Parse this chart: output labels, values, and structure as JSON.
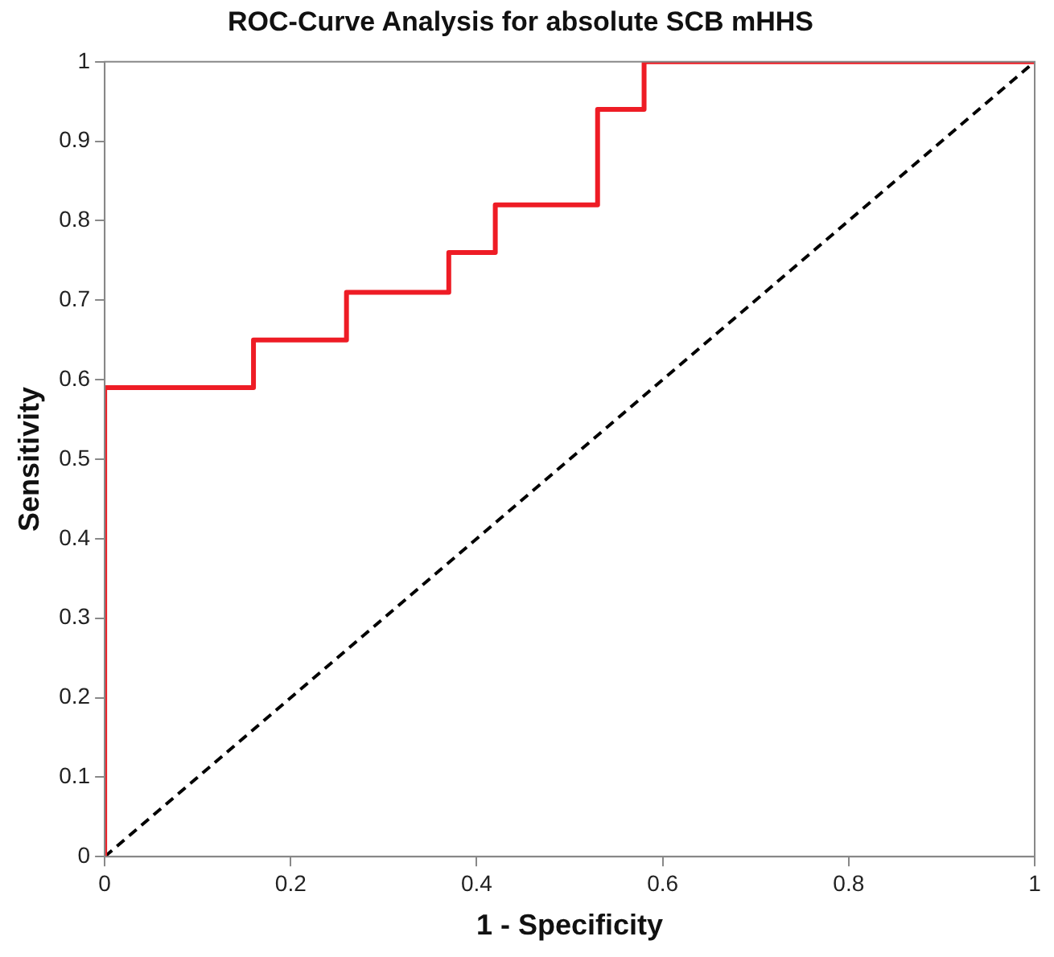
{
  "chart_data": {
    "type": "step",
    "title": "ROC-Curve Analysis for absolute SCB mHHS",
    "xlabel": "1 - Specificity",
    "ylabel": "Sensitivity",
    "xlim": [
      0,
      1
    ],
    "ylim": [
      0,
      1
    ],
    "xticks": [
      0,
      0.2,
      0.4,
      0.6,
      0.8,
      1
    ],
    "yticks": [
      0,
      0.1,
      0.2,
      0.3,
      0.4,
      0.5,
      0.6,
      0.7,
      0.8,
      0.9,
      1
    ],
    "grid": false,
    "legend": false,
    "marker": "none",
    "series": [
      {
        "color": "#ee1c25",
        "line_style": "solid",
        "x": [
          0,
          0,
          0.16,
          0.26,
          0.37,
          0.42,
          0.53,
          0.58,
          1
        ],
        "values": [
          0,
          0.59,
          0.65,
          0.71,
          0.76,
          0.82,
          0.94,
          1,
          1
        ]
      },
      {
        "type": "line",
        "color": "#000000",
        "line_style": "dashed",
        "x": [
          0,
          1
        ],
        "values": [
          0,
          1
        ]
      }
    ]
  }
}
